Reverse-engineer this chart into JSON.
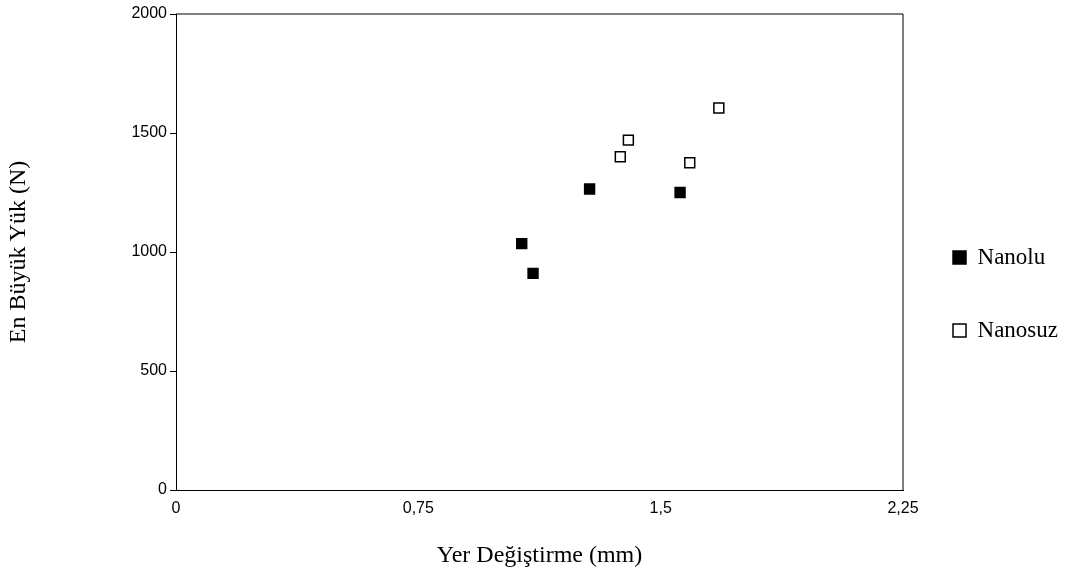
{
  "chart_data": {
    "type": "scatter",
    "xlabel": "Yer Değiştirme (mm)",
    "ylabel": "En Büyük Yük (N)",
    "xlim": [
      0,
      2.25
    ],
    "xticks": [
      0,
      {
        "value": 0.75,
        "label": "0,75"
      },
      {
        "value": 1.5,
        "label": "1,5"
      },
      {
        "value": 2.25,
        "label": "2,25"
      }
    ],
    "ylim": [
      0,
      2000
    ],
    "yticks": [
      0,
      500,
      1000,
      1500,
      2000
    ],
    "grid": false,
    "legend": "right",
    "marker": "square",
    "series": [
      {
        "name": "Nanolu",
        "color": "#000000",
        "x": [
          1.07,
          1.105,
          1.28,
          1.56
        ],
        "values": [
          1035,
          910,
          1265,
          1250
        ]
      },
      {
        "name": "Nanosuz",
        "color": "#000000",
        "x": [
          1.375,
          1.4,
          1.59,
          1.68
        ],
        "values": [
          1400,
          1470,
          1375,
          1605
        ]
      }
    ]
  }
}
